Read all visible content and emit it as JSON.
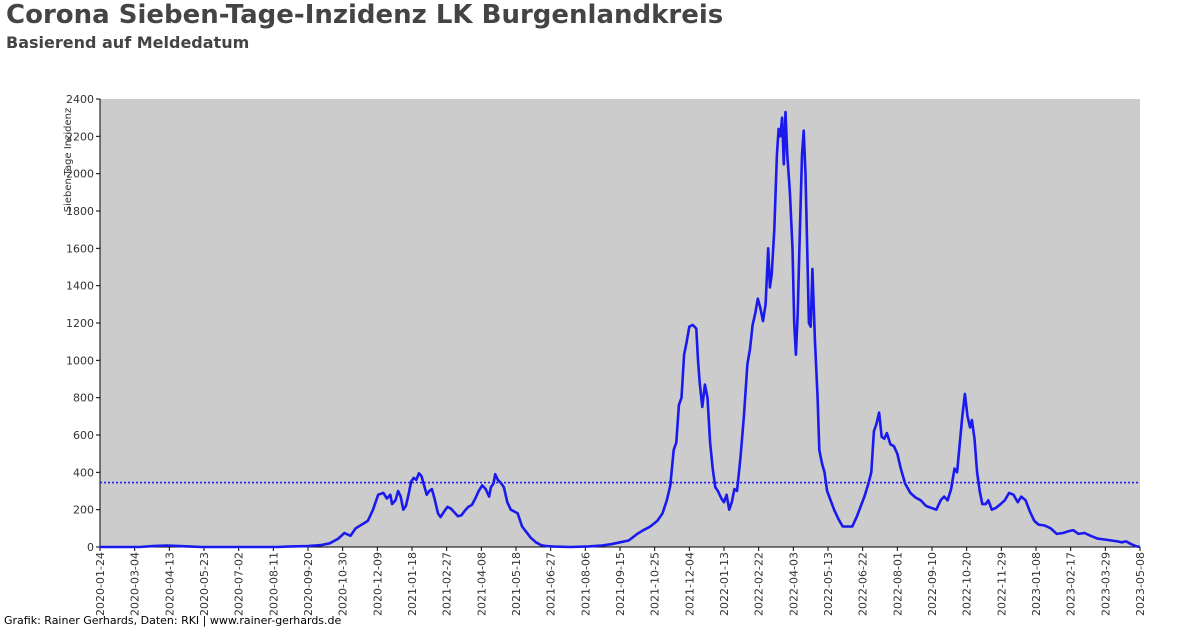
{
  "header": {
    "title": "Corona Sieben-Tage-Inzidenz LK Burgenlandkreis",
    "subtitle": "Basierend auf Meldedatum"
  },
  "footer": {
    "credit": "Grafik: Rainer Gerhards, Daten: RKI | www.rainer-gerhards.de"
  },
  "colors": {
    "line": "#1a1aee",
    "plot_bg": "#cccccc",
    "reference": "#1a1aee"
  },
  "chart_data": {
    "type": "line",
    "title": "Corona Sieben-Tage-Inzidenz LK Burgenlandkreis",
    "subtitle": "Basierend auf Meldedatum",
    "xlabel": "",
    "ylabel": "Sieben-Tage Inzidenz",
    "xlim": [
      "2020-01-24",
      "2023-05-08"
    ],
    "ylim": [
      0,
      2400
    ],
    "yticks": [
      0,
      200,
      400,
      600,
      800,
      1000,
      1200,
      1400,
      1600,
      1800,
      2000,
      2200,
      2400
    ],
    "xticks": [
      "2020-01-24",
      "2020-03-04",
      "2020-04-13",
      "2020-05-23",
      "2020-07-02",
      "2020-08-11",
      "2020-09-20",
      "2020-10-30",
      "2020-12-09",
      "2021-01-18",
      "2021-02-27",
      "2021-04-08",
      "2021-05-18",
      "2021-06-27",
      "2021-08-06",
      "2021-09-15",
      "2021-10-25",
      "2021-12-04",
      "2022-01-13",
      "2022-02-22",
      "2022-04-03",
      "2022-05-13",
      "2022-06-22",
      "2022-08-01",
      "2022-09-10",
      "2022-10-20",
      "2022-11-29",
      "2023-01-08",
      "2023-02-17",
      "2023-03-29",
      "2023-05-08"
    ],
    "grid": false,
    "reference_line": {
      "y": 345,
      "style": "dotted"
    },
    "series": [
      {
        "points": [
          [
            "2020-01-24",
            0
          ],
          [
            "2020-03-10",
            0
          ],
          [
            "2020-03-25",
            5
          ],
          [
            "2020-04-10",
            8
          ],
          [
            "2020-04-25",
            5
          ],
          [
            "2020-05-05",
            3
          ],
          [
            "2020-05-20",
            0
          ],
          [
            "2020-08-15",
            0
          ],
          [
            "2020-09-01",
            3
          ],
          [
            "2020-09-20",
            5
          ],
          [
            "2020-10-05",
            10
          ],
          [
            "2020-10-15",
            20
          ],
          [
            "2020-10-25",
            45
          ],
          [
            "2020-11-01",
            75
          ],
          [
            "2020-11-08",
            60
          ],
          [
            "2020-11-14",
            100
          ],
          [
            "2020-11-21",
            120
          ],
          [
            "2020-11-28",
            140
          ],
          [
            "2020-12-04",
            200
          ],
          [
            "2020-12-10",
            280
          ],
          [
            "2020-12-16",
            290
          ],
          [
            "2020-12-20",
            260
          ],
          [
            "2020-12-24",
            280
          ],
          [
            "2020-12-26",
            230
          ],
          [
            "2020-12-30",
            250
          ],
          [
            "2021-01-02",
            300
          ],
          [
            "2021-01-05",
            270
          ],
          [
            "2021-01-08",
            200
          ],
          [
            "2021-01-11",
            220
          ],
          [
            "2021-01-14",
            280
          ],
          [
            "2021-01-17",
            350
          ],
          [
            "2021-01-20",
            370
          ],
          [
            "2021-01-23",
            360
          ],
          [
            "2021-01-26",
            395
          ],
          [
            "2021-01-29",
            380
          ],
          [
            "2021-02-01",
            330
          ],
          [
            "2021-02-04",
            280
          ],
          [
            "2021-02-07",
            300
          ],
          [
            "2021-02-10",
            310
          ],
          [
            "2021-02-13",
            260
          ],
          [
            "2021-02-17",
            180
          ],
          [
            "2021-02-20",
            160
          ],
          [
            "2021-02-24",
            190
          ],
          [
            "2021-02-28",
            215
          ],
          [
            "2021-03-04",
            205
          ],
          [
            "2021-03-08",
            185
          ],
          [
            "2021-03-12",
            165
          ],
          [
            "2021-03-16",
            170
          ],
          [
            "2021-03-20",
            195
          ],
          [
            "2021-03-24",
            215
          ],
          [
            "2021-03-28",
            225
          ],
          [
            "2021-04-01",
            260
          ],
          [
            "2021-04-05",
            300
          ],
          [
            "2021-04-09",
            330
          ],
          [
            "2021-04-13",
            310
          ],
          [
            "2021-04-17",
            270
          ],
          [
            "2021-04-19",
            320
          ],
          [
            "2021-04-22",
            340
          ],
          [
            "2021-04-24",
            390
          ],
          [
            "2021-04-27",
            360
          ],
          [
            "2021-05-01",
            340
          ],
          [
            "2021-05-04",
            320
          ],
          [
            "2021-05-08",
            240
          ],
          [
            "2021-05-12",
            200
          ],
          [
            "2021-05-16",
            190
          ],
          [
            "2021-05-20",
            180
          ],
          [
            "2021-05-25",
            110
          ],
          [
            "2021-05-30",
            80
          ],
          [
            "2021-06-04",
            50
          ],
          [
            "2021-06-10",
            25
          ],
          [
            "2021-06-16",
            10
          ],
          [
            "2021-06-22",
            5
          ],
          [
            "2021-07-01",
            2
          ],
          [
            "2021-07-20",
            0
          ],
          [
            "2021-08-10",
            3
          ],
          [
            "2021-08-25",
            8
          ],
          [
            "2021-09-05",
            15
          ],
          [
            "2021-09-15",
            25
          ],
          [
            "2021-09-25",
            35
          ],
          [
            "2021-10-05",
            70
          ],
          [
            "2021-10-12",
            90
          ],
          [
            "2021-10-20",
            110
          ],
          [
            "2021-10-28",
            140
          ],
          [
            "2021-11-03",
            180
          ],
          [
            "2021-11-08",
            250
          ],
          [
            "2021-11-12",
            330
          ],
          [
            "2021-11-16",
            520
          ],
          [
            "2021-11-19",
            560
          ],
          [
            "2021-11-22",
            760
          ],
          [
            "2021-11-25",
            800
          ],
          [
            "2021-11-28",
            1030
          ],
          [
            "2021-12-01",
            1100
          ],
          [
            "2021-12-04",
            1180
          ],
          [
            "2021-12-08",
            1190
          ],
          [
            "2021-12-12",
            1170
          ],
          [
            "2021-12-14",
            1000
          ],
          [
            "2021-12-16",
            880
          ],
          [
            "2021-12-19",
            750
          ],
          [
            "2021-12-22",
            870
          ],
          [
            "2021-12-25",
            800
          ],
          [
            "2021-12-28",
            560
          ],
          [
            "2021-12-31",
            420
          ],
          [
            "2022-01-03",
            320
          ],
          [
            "2022-01-06",
            300
          ],
          [
            "2022-01-10",
            260
          ],
          [
            "2022-01-13",
            240
          ],
          [
            "2022-01-16",
            280
          ],
          [
            "2022-01-19",
            200
          ],
          [
            "2022-01-22",
            240
          ],
          [
            "2022-01-25",
            310
          ],
          [
            "2022-01-28",
            300
          ],
          [
            "2022-02-01",
            480
          ],
          [
            "2022-02-05",
            700
          ],
          [
            "2022-02-09",
            980
          ],
          [
            "2022-02-12",
            1060
          ],
          [
            "2022-02-15",
            1190
          ],
          [
            "2022-02-18",
            1250
          ],
          [
            "2022-02-21",
            1330
          ],
          [
            "2022-02-24",
            1280
          ],
          [
            "2022-02-27",
            1210
          ],
          [
            "2022-03-02",
            1300
          ],
          [
            "2022-03-05",
            1600
          ],
          [
            "2022-03-07",
            1390
          ],
          [
            "2022-03-09",
            1460
          ],
          [
            "2022-03-12",
            1700
          ],
          [
            "2022-03-15",
            2100
          ],
          [
            "2022-03-17",
            2240
          ],
          [
            "2022-03-19",
            2200
          ],
          [
            "2022-03-21",
            2300
          ],
          [
            "2022-03-23",
            2050
          ],
          [
            "2022-03-25",
            2330
          ],
          [
            "2022-03-27",
            2100
          ],
          [
            "2022-03-30",
            1900
          ],
          [
            "2022-04-02",
            1600
          ],
          [
            "2022-04-04",
            1200
          ],
          [
            "2022-04-06",
            1030
          ],
          [
            "2022-04-08",
            1250
          ],
          [
            "2022-04-10",
            1600
          ],
          [
            "2022-04-13",
            2100
          ],
          [
            "2022-04-15",
            2230
          ],
          [
            "2022-04-17",
            2000
          ],
          [
            "2022-04-19",
            1600
          ],
          [
            "2022-04-21",
            1200
          ],
          [
            "2022-04-23",
            1180
          ],
          [
            "2022-04-25",
            1490
          ],
          [
            "2022-04-28",
            1100
          ],
          [
            "2022-05-01",
            800
          ],
          [
            "2022-05-03",
            520
          ],
          [
            "2022-05-06",
            450
          ],
          [
            "2022-05-09",
            400
          ],
          [
            "2022-05-12",
            300
          ],
          [
            "2022-05-16",
            250
          ],
          [
            "2022-05-20",
            200
          ],
          [
            "2022-05-25",
            150
          ],
          [
            "2022-05-30",
            110
          ],
          [
            "2022-06-05",
            110
          ],
          [
            "2022-06-10",
            110
          ],
          [
            "2022-06-15",
            160
          ],
          [
            "2022-06-20",
            220
          ],
          [
            "2022-06-24",
            270
          ],
          [
            "2022-06-28",
            330
          ],
          [
            "2022-07-02",
            400
          ],
          [
            "2022-07-05",
            620
          ],
          [
            "2022-07-08",
            660
          ],
          [
            "2022-07-11",
            720
          ],
          [
            "2022-07-14",
            590
          ],
          [
            "2022-07-17",
            580
          ],
          [
            "2022-07-20",
            610
          ],
          [
            "2022-07-24",
            550
          ],
          [
            "2022-07-28",
            540
          ],
          [
            "2022-08-01",
            500
          ],
          [
            "2022-08-05",
            420
          ],
          [
            "2022-08-10",
            340
          ],
          [
            "2022-08-16",
            290
          ],
          [
            "2022-08-22",
            265
          ],
          [
            "2022-08-28",
            250
          ],
          [
            "2022-09-03",
            220
          ],
          [
            "2022-09-09",
            210
          ],
          [
            "2022-09-15",
            200
          ],
          [
            "2022-09-20",
            250
          ],
          [
            "2022-09-24",
            270
          ],
          [
            "2022-09-28",
            250
          ],
          [
            "2022-10-02",
            310
          ],
          [
            "2022-10-06",
            420
          ],
          [
            "2022-10-09",
            400
          ],
          [
            "2022-10-12",
            550
          ],
          [
            "2022-10-15",
            700
          ],
          [
            "2022-10-18",
            820
          ],
          [
            "2022-10-21",
            700
          ],
          [
            "2022-10-24",
            640
          ],
          [
            "2022-10-26",
            680
          ],
          [
            "2022-10-29",
            580
          ],
          [
            "2022-11-01",
            400
          ],
          [
            "2022-11-04",
            300
          ],
          [
            "2022-11-07",
            230
          ],
          [
            "2022-11-11",
            230
          ],
          [
            "2022-11-14",
            250
          ],
          [
            "2022-11-18",
            200
          ],
          [
            "2022-11-23",
            210
          ],
          [
            "2022-11-28",
            230
          ],
          [
            "2022-12-03",
            250
          ],
          [
            "2022-12-08",
            290
          ],
          [
            "2022-12-13",
            280
          ],
          [
            "2022-12-18",
            240
          ],
          [
            "2022-12-22",
            270
          ],
          [
            "2022-12-27",
            250
          ],
          [
            "2023-01-01",
            190
          ],
          [
            "2023-01-06",
            140
          ],
          [
            "2023-01-11",
            120
          ],
          [
            "2023-01-18",
            115
          ],
          [
            "2023-01-25",
            100
          ],
          [
            "2023-02-01",
            70
          ],
          [
            "2023-02-08",
            75
          ],
          [
            "2023-02-15",
            85
          ],
          [
            "2023-02-20",
            90
          ],
          [
            "2023-02-26",
            70
          ],
          [
            "2023-03-05",
            75
          ],
          [
            "2023-03-12",
            60
          ],
          [
            "2023-03-20",
            45
          ],
          [
            "2023-03-28",
            40
          ],
          [
            "2023-04-05",
            35
          ],
          [
            "2023-04-12",
            30
          ],
          [
            "2023-04-17",
            25
          ],
          [
            "2023-04-22",
            30
          ],
          [
            "2023-04-28",
            15
          ],
          [
            "2023-05-03",
            5
          ],
          [
            "2023-05-08",
            0
          ]
        ]
      }
    ]
  }
}
